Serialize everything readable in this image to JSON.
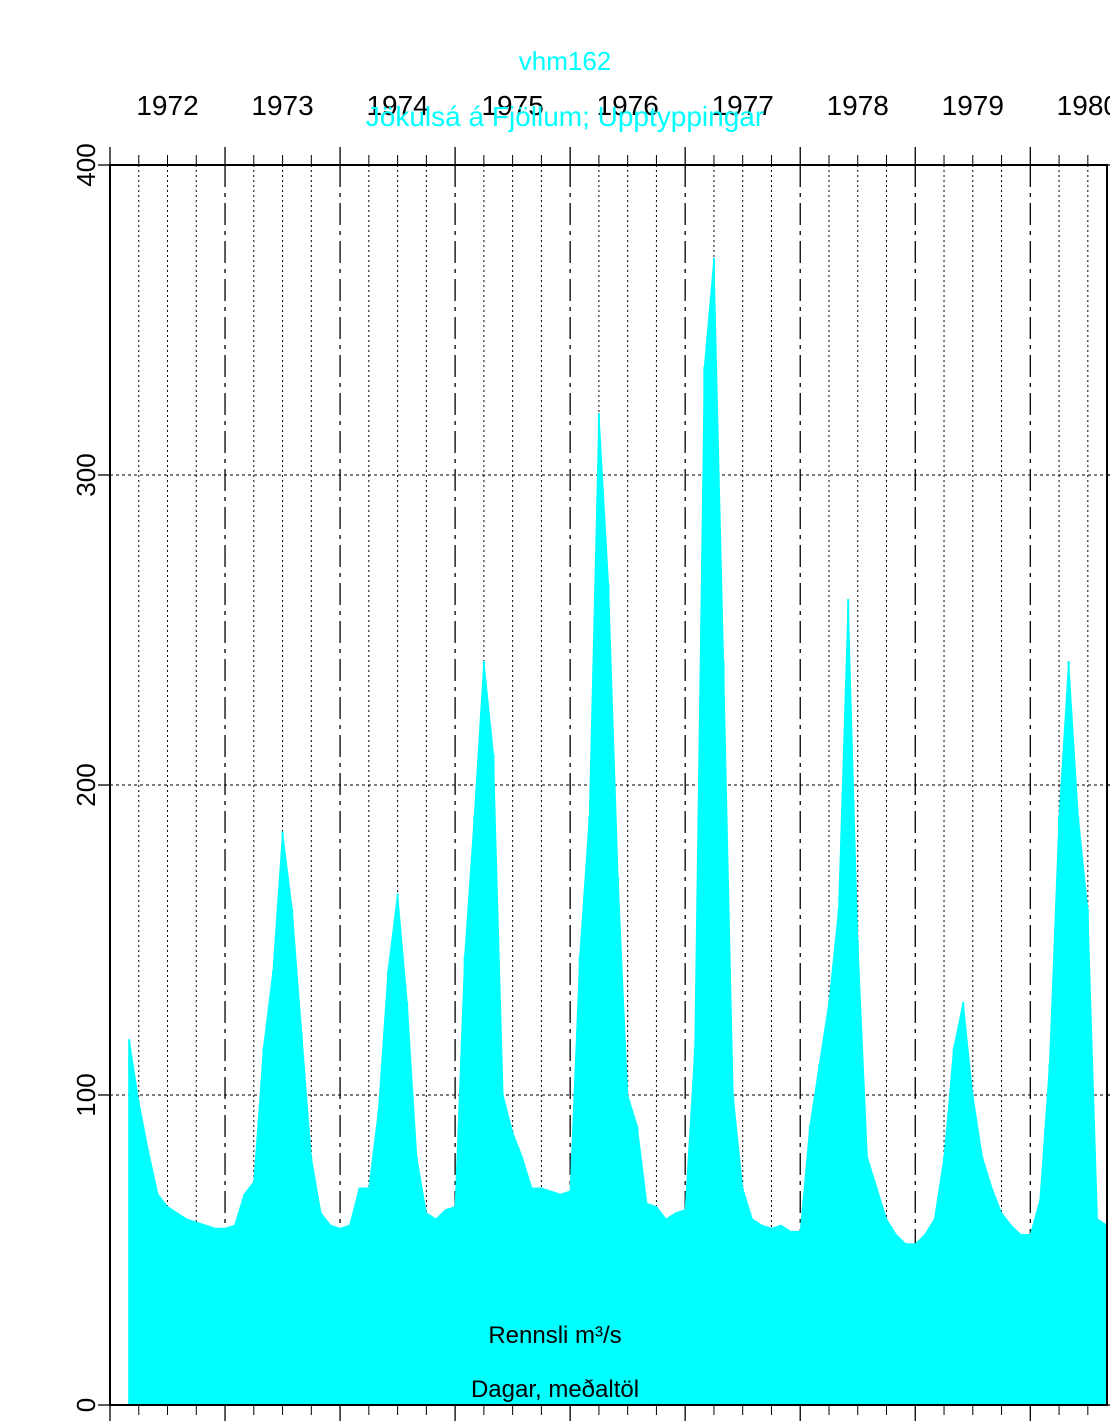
{
  "figure": {
    "id_label": "vhm162",
    "station_title": "Jökulsá á Fjöllum; Upptyppingar",
    "ylabel": "Rennsli m³/s",
    "subtitle": "Dagar, meðaltöl",
    "title_color": "#00ffff",
    "fill_color": "#00ffff",
    "text_color": "#000000",
    "rotation": "180 degrees (figure appears upside down)"
  },
  "chart_data": {
    "type": "area",
    "title": "Jökulsá á Fjöllum; Upptyppingar",
    "ylabel": "Rennsli m³/s",
    "xlabel": "",
    "series": [
      {
        "name": "Dagar, meðaltöl",
        "x": [
          "1972-03",
          "1972-04",
          "1972-05",
          "1972-06",
          "1972-07",
          "1972-08",
          "1972-09",
          "1972-10",
          "1972-11",
          "1972-12",
          "1973-01",
          "1973-02",
          "1973-03",
          "1973-04",
          "1973-05",
          "1973-06",
          "1973-07",
          "1973-08",
          "1973-09",
          "1973-10",
          "1973-11",
          "1973-12",
          "1974-01",
          "1974-02",
          "1974-03",
          "1974-04",
          "1974-05",
          "1974-06",
          "1974-07",
          "1974-08",
          "1974-09",
          "1974-10",
          "1974-11",
          "1974-12",
          "1975-01",
          "1975-02",
          "1975-03",
          "1975-04",
          "1975-05",
          "1975-06",
          "1975-07",
          "1975-08",
          "1975-09",
          "1975-10",
          "1975-11",
          "1975-12",
          "1976-01",
          "1976-02",
          "1976-03",
          "1976-04",
          "1976-05",
          "1976-06",
          "1976-07",
          "1976-08",
          "1976-09",
          "1976-10",
          "1976-11",
          "1976-12",
          "1977-01",
          "1977-02",
          "1977-03",
          "1977-04",
          "1977-05",
          "1977-06",
          "1977-07",
          "1977-08",
          "1977-09",
          "1977-10",
          "1977-11",
          "1977-12",
          "1978-01",
          "1978-02",
          "1978-03",
          "1978-04",
          "1978-05",
          "1978-06",
          "1978-07",
          "1978-08",
          "1978-09",
          "1978-10",
          "1978-11",
          "1978-12",
          "1979-01",
          "1979-02",
          "1979-03",
          "1979-04",
          "1979-05",
          "1979-06",
          "1979-07",
          "1979-08",
          "1979-09",
          "1979-10",
          "1979-11",
          "1979-12",
          "1980-01",
          "1980-02",
          "1980-03",
          "1980-04",
          "1980-05",
          "1980-06",
          "1980-07",
          "1980-08",
          "1980-09"
        ],
        "values": [
          118,
          98,
          82,
          68,
          64,
          62,
          60,
          59,
          58,
          57,
          57,
          58,
          68,
          72,
          115,
          140,
          185,
          160,
          120,
          80,
          62,
          58,
          57,
          58,
          70,
          70,
          95,
          140,
          165,
          130,
          80,
          62,
          60,
          63,
          64,
          145,
          190,
          240,
          210,
          100,
          88,
          80,
          70,
          70,
          69,
          68,
          69,
          145,
          190,
          320,
          265,
          170,
          100,
          90,
          65,
          64,
          60,
          62,
          63,
          115,
          335,
          370,
          240,
          100,
          70,
          60,
          58,
          57,
          58,
          56,
          56,
          90,
          110,
          130,
          160,
          260,
          150,
          80,
          70,
          60,
          55,
          52,
          52,
          55,
          60,
          80,
          115,
          130,
          100,
          80,
          70,
          62,
          58,
          55,
          55,
          66,
          110,
          190,
          240,
          190,
          160,
          60,
          58
        ]
      }
    ],
    "x_ticks": [
      "1972",
      "1973",
      "1974",
      "1975",
      "1976",
      "1977",
      "1978",
      "1979",
      "1980"
    ],
    "y_ticks": [
      0,
      100,
      200,
      300,
      400
    ],
    "ylim": [
      0,
      400
    ],
    "xlim": [
      "1972-01",
      "1980-09"
    ],
    "grid": "dotted monthly lines, dash-dot year boundaries, dotted value gridlines",
    "legend": "none"
  }
}
